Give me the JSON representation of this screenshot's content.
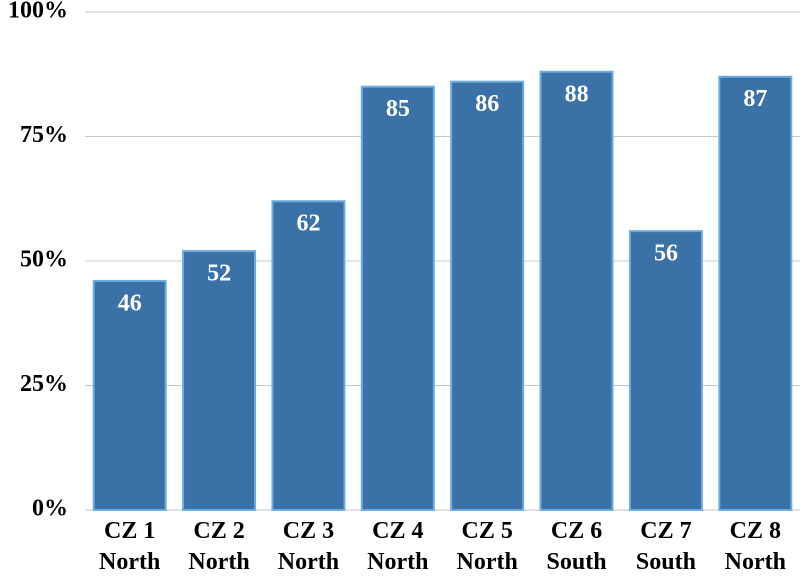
{
  "chart_data": {
    "type": "bar",
    "categories": [
      "CZ 1 North",
      "CZ 2 North",
      "CZ 3 North",
      "CZ 4 North",
      "CZ 5 North",
      "CZ 6 South",
      "CZ 7 South",
      "CZ 8 North"
    ],
    "values": [
      46,
      52,
      62,
      85,
      86,
      88,
      56,
      87
    ],
    "color": "#3a72a8",
    "ylim": [
      0,
      100
    ],
    "yticks": [
      {
        "value": 0,
        "label": "0%"
      },
      {
        "value": 25,
        "label": "25%"
      },
      {
        "value": 50,
        "label": "50%"
      },
      {
        "value": 75,
        "label": "75%"
      },
      {
        "value": 100,
        "label": "100%"
      }
    ],
    "grid": true
  }
}
